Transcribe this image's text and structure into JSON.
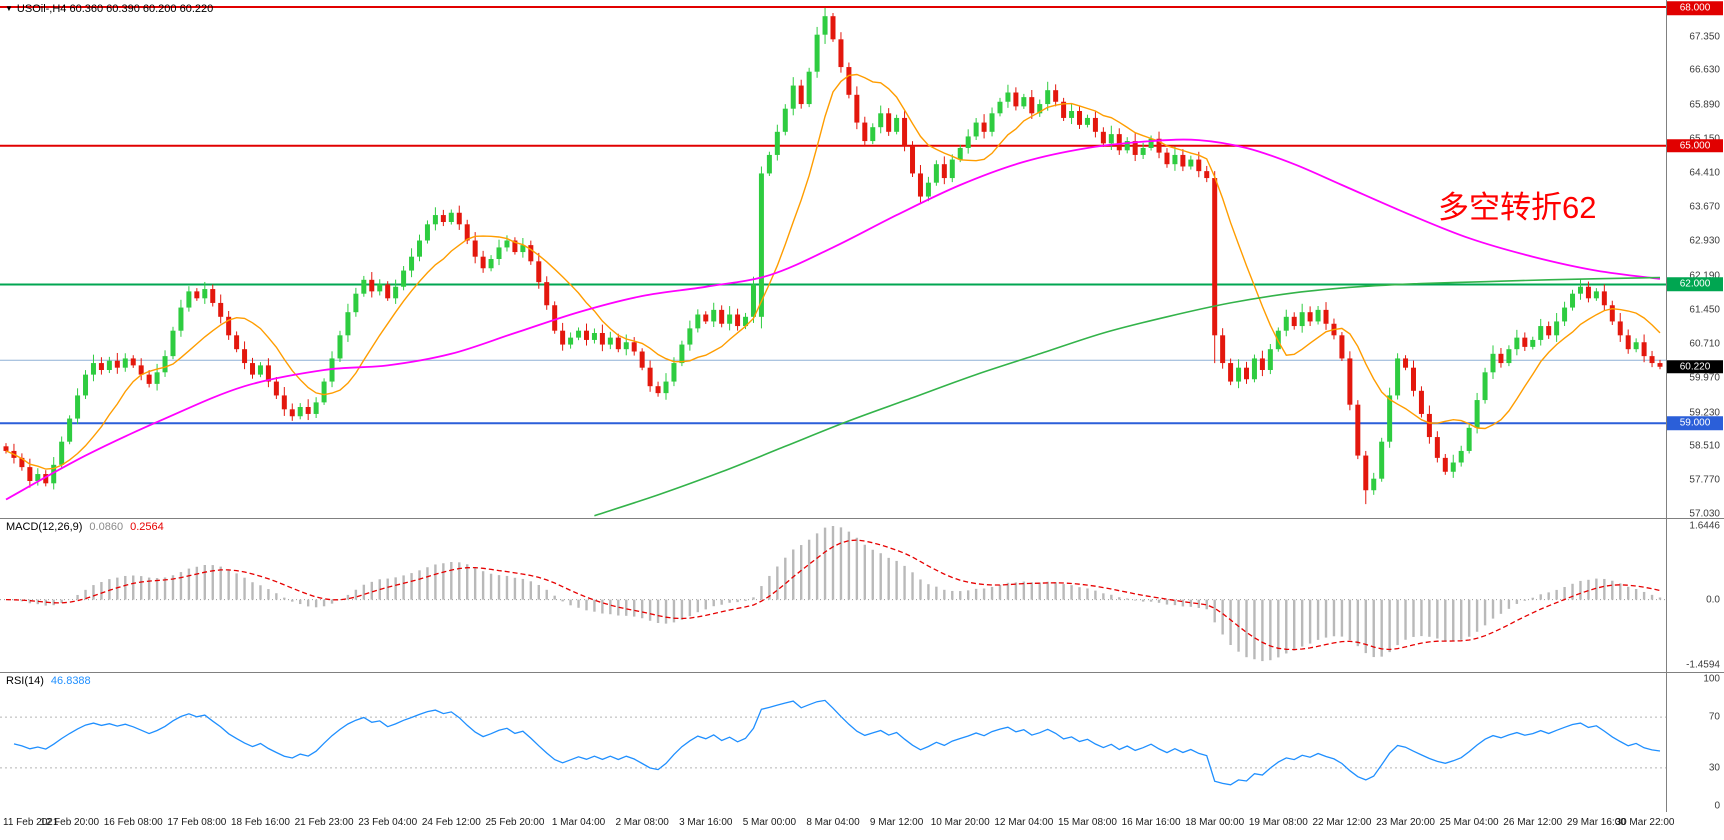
{
  "header": {
    "marker": "▼",
    "symbol_info": "USOil-,H4 60.360 60.390 60.200 60.220"
  },
  "annotation": {
    "text": "多空转折62",
    "color": "#ff0000"
  },
  "chart_data": {
    "type": "candlestick",
    "symbol": "USOil-",
    "timeframe": "H4",
    "ylim": [
      56.95,
      68.15
    ],
    "colors": {
      "up": "#2ecc40",
      "down": "#e3170d"
    },
    "price_axis_ticks": [
      67.35,
      66.63,
      65.89,
      65.15,
      64.41,
      63.67,
      62.93,
      62.19,
      61.45,
      60.71,
      59.97,
      59.23,
      58.51,
      57.77,
      57.03
    ],
    "h_lines": [
      {
        "price": 68.0,
        "color": "#e10000",
        "width": 2
      },
      {
        "price": 65.0,
        "color": "#e10000",
        "width": 2
      },
      {
        "price": 62.0,
        "color": "#00a651",
        "width": 2
      },
      {
        "price": 60.36,
        "color": "#8fb0d6",
        "width": 1
      },
      {
        "price": 59.0,
        "color": "#2b5fd9",
        "width": 2
      }
    ],
    "badges": [
      {
        "text": "68.000",
        "price": 68.0,
        "bg": "#e10000"
      },
      {
        "text": "65.000",
        "price": 65.0,
        "bg": "#e10000"
      },
      {
        "text": "62.000",
        "price": 62.0,
        "bg": "#00a651"
      },
      {
        "text": "60.220",
        "price": 60.22,
        "bg": "#000000"
      },
      {
        "text": "59.000",
        "price": 59.0,
        "bg": "#2b5fd9"
      }
    ],
    "current_price": 60.22,
    "bars_per_label": 8,
    "x_labels": [
      "11 Feb 2021",
      "12 Feb 20:00",
      "16 Feb 08:00",
      "17 Feb 08:00",
      "18 Feb 16:00",
      "21 Feb 23:00",
      "23 Feb 04:00",
      "24 Feb 12:00",
      "25 Feb 20:00",
      "1 Mar 04:00",
      "2 Mar 08:00",
      "3 Mar 16:00",
      "5 Mar 00:00",
      "8 Mar 04:00",
      "9 Mar 12:00",
      "10 Mar 20:00",
      "12 Mar 04:00",
      "15 Mar 08:00",
      "16 Mar 16:00",
      "18 Mar 00:00",
      "19 Mar 08:00",
      "22 Mar 12:00",
      "23 Mar 20:00",
      "25 Mar 04:00",
      "26 Mar 12:00",
      "29 Mar 16:00",
      "30 Mar 22:00"
    ],
    "first_open": 58.5,
    "closes": [
      58.4,
      58.25,
      58.05,
      57.75,
      57.9,
      57.7,
      58.1,
      58.6,
      59.1,
      59.6,
      60.05,
      60.3,
      60.15,
      60.35,
      60.2,
      60.4,
      60.25,
      60.05,
      59.85,
      60.1,
      60.45,
      61.0,
      61.5,
      61.85,
      61.7,
      61.9,
      61.6,
      61.3,
      60.9,
      60.6,
      60.3,
      60.05,
      60.25,
      59.9,
      59.6,
      59.3,
      59.15,
      59.35,
      59.2,
      59.45,
      59.9,
      60.4,
      60.9,
      61.4,
      61.8,
      62.1,
      61.85,
      62.0,
      61.7,
      61.95,
      62.3,
      62.6,
      62.95,
      63.3,
      63.5,
      63.35,
      63.55,
      63.3,
      62.95,
      62.6,
      62.35,
      62.55,
      62.8,
      62.95,
      62.7,
      62.85,
      62.5,
      62.05,
      61.55,
      61.0,
      60.7,
      60.85,
      61.0,
      60.8,
      60.95,
      60.7,
      60.85,
      60.6,
      60.75,
      60.55,
      60.2,
      59.8,
      59.65,
      59.9,
      60.3,
      60.7,
      61.05,
      61.35,
      61.2,
      61.45,
      61.15,
      61.35,
      61.1,
      61.3,
      62.0,
      64.4,
      64.8,
      65.3,
      65.8,
      66.3,
      65.9,
      66.6,
      67.4,
      67.8,
      67.3,
      66.7,
      66.1,
      65.5,
      65.1,
      65.4,
      65.7,
      65.3,
      65.6,
      65.0,
      64.4,
      63.9,
      64.2,
      64.6,
      64.3,
      64.7,
      64.95,
      65.2,
      65.5,
      65.3,
      65.7,
      65.95,
      66.15,
      65.85,
      66.05,
      65.7,
      65.9,
      66.2,
      65.95,
      65.6,
      65.75,
      65.45,
      65.6,
      65.3,
      65.05,
      65.25,
      64.9,
      65.1,
      64.8,
      64.95,
      65.15,
      64.85,
      64.6,
      64.8,
      64.55,
      64.7,
      64.45,
      64.3,
      60.9,
      60.3,
      59.9,
      60.2,
      59.95,
      60.4,
      60.15,
      60.6,
      61.0,
      61.3,
      61.1,
      61.4,
      61.2,
      61.45,
      61.15,
      60.9,
      60.4,
      59.4,
      58.3,
      57.55,
      57.8,
      58.6,
      59.6,
      60.4,
      60.2,
      59.7,
      59.2,
      58.7,
      58.25,
      57.95,
      58.15,
      58.4,
      58.9,
      59.5,
      60.1,
      60.5,
      60.3,
      60.6,
      60.85,
      60.65,
      60.8,
      61.1,
      60.9,
      61.2,
      61.5,
      61.8,
      61.95,
      61.7,
      61.85,
      61.55,
      61.2,
      60.9,
      60.6,
      60.75,
      60.45,
      60.3,
      60.22
    ],
    "special_candles": {
      "95": [
        61.3,
        64.55,
        61.05,
        64.4
      ],
      "103": [
        67.4,
        67.98,
        67.2,
        67.8
      ],
      "152": [
        64.3,
        64.45,
        60.3,
        60.9
      ],
      "171": [
        58.3,
        58.4,
        57.25,
        57.55
      ]
    },
    "moving_averages": {
      "orange": {
        "type": "sma",
        "period": 10,
        "color": "#ff9d00"
      },
      "magenta": {
        "color": "#ff00ff",
        "anchors": [
          [
            0,
            57.35
          ],
          [
            10,
            58.3
          ],
          [
            20,
            59.1
          ],
          [
            30,
            59.8
          ],
          [
            40,
            60.15
          ],
          [
            48,
            60.25
          ],
          [
            56,
            60.5
          ],
          [
            64,
            60.95
          ],
          [
            72,
            61.4
          ],
          [
            80,
            61.75
          ],
          [
            88,
            61.95
          ],
          [
            96,
            62.2
          ],
          [
            104,
            62.8
          ],
          [
            112,
            63.5
          ],
          [
            120,
            64.15
          ],
          [
            128,
            64.65
          ],
          [
            136,
            64.95
          ],
          [
            144,
            65.1
          ],
          [
            150,
            65.12
          ],
          [
            156,
            64.95
          ],
          [
            162,
            64.6
          ],
          [
            168,
            64.15
          ],
          [
            176,
            63.55
          ],
          [
            184,
            63.0
          ],
          [
            192,
            62.6
          ],
          [
            200,
            62.3
          ],
          [
            208,
            62.12
          ]
        ]
      },
      "green": {
        "color": "#33b34a",
        "anchors": [
          [
            74,
            57.0
          ],
          [
            82,
            57.45
          ],
          [
            90,
            57.95
          ],
          [
            98,
            58.5
          ],
          [
            106,
            59.05
          ],
          [
            114,
            59.55
          ],
          [
            122,
            60.05
          ],
          [
            130,
            60.5
          ],
          [
            138,
            60.95
          ],
          [
            146,
            61.3
          ],
          [
            154,
            61.6
          ],
          [
            162,
            61.82
          ],
          [
            170,
            61.95
          ],
          [
            178,
            62.02
          ],
          [
            186,
            62.06
          ],
          [
            194,
            62.1
          ],
          [
            208,
            62.15
          ]
        ]
      }
    },
    "indicators": [
      {
        "name": "MACD",
        "label": "MACD(12,26,9)",
        "value_main": "0.0860",
        "value_signal": "0.2564",
        "fast": 12,
        "slow": 26,
        "signal": 9,
        "axis_max": 1.6446,
        "axis_min": -1.4594,
        "axis_ticks": [
          [
            1.6446,
            "1.6446"
          ],
          [
            0,
            "0.0"
          ],
          [
            -1.4594,
            "-1.4594"
          ]
        ],
        "hist_color": "#b9b9b9",
        "signal_color": "#e60000"
      },
      {
        "name": "RSI",
        "label": "RSI(14)",
        "value": "46.8388",
        "period": 14,
        "levels": [
          70,
          30
        ],
        "axis_ticks": [
          100,
          70,
          30,
          0
        ],
        "color": "#1f8fff"
      }
    ]
  }
}
